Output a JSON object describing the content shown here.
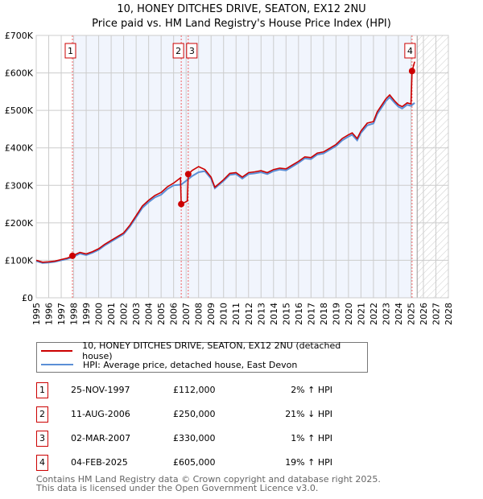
{
  "title": "10, HONEY DITCHES DRIVE, SEATON, EX12 2NU",
  "subtitle": "Price paid vs. HM Land Registry's House Price Index (HPI)",
  "chart_data": {
    "type": "line",
    "xlim": [
      1995,
      2028
    ],
    "ylim": [
      0,
      700000
    ],
    "x_ticks": [
      "1995",
      "1996",
      "1997",
      "1998",
      "1999",
      "2000",
      "2001",
      "2002",
      "2003",
      "2004",
      "2005",
      "2006",
      "2007",
      "2008",
      "2009",
      "2010",
      "2011",
      "2012",
      "2013",
      "2014",
      "2015",
      "2016",
      "2017",
      "2018",
      "2019",
      "2020",
      "2021",
      "2022",
      "2023",
      "2024",
      "2025",
      "2026",
      "2027",
      "2028"
    ],
    "y_ticks": [
      {
        "v": 0,
        "l": "£0"
      },
      {
        "v": 100000,
        "l": "£100K"
      },
      {
        "v": 200000,
        "l": "£200K"
      },
      {
        "v": 300000,
        "l": "£300K"
      },
      {
        "v": 400000,
        "l": "£400K"
      },
      {
        "v": 500000,
        "l": "£500K"
      },
      {
        "v": 600000,
        "l": "£600K"
      },
      {
        "v": 700000,
        "l": "£700K"
      }
    ],
    "shaded_range": [
      1997.9,
      2025.1
    ],
    "forecast_from": 2025.5,
    "series": [
      {
        "name": "HPI: Average price, detached house, East Devon",
        "color": "#5b8fd6",
        "x": [
          1995,
          1995.5,
          1996,
          1996.5,
          1997,
          1997.5,
          1997.9,
          1998.5,
          1999,
          1999.5,
          2000,
          2000.5,
          2001,
          2001.5,
          2002,
          2002.5,
          2003,
          2003.5,
          2004,
          2004.5,
          2005,
          2005.5,
          2006,
          2006.6,
          2007,
          2007.5,
          2008,
          2008.5,
          2009,
          2009.3,
          2010,
          2010.5,
          2011,
          2011.5,
          2012,
          2012.5,
          2013,
          2013.5,
          2014,
          2014.5,
          2015,
          2015.5,
          2016,
          2016.5,
          2017,
          2017.5,
          2018,
          2018.5,
          2019,
          2019.5,
          2020,
          2020.3,
          2020.7,
          2021,
          2021.5,
          2022,
          2022.3,
          2022.7,
          2023,
          2023.3,
          2023.7,
          2024,
          2024.3,
          2024.7,
          2025,
          2025.3
        ],
        "y": [
          98000,
          93000,
          94000,
          96000,
          100000,
          104000,
          108000,
          118000,
          114000,
          120000,
          128000,
          140000,
          150000,
          160000,
          170000,
          190000,
          215000,
          240000,
          255000,
          268000,
          275000,
          290000,
          300000,
          302000,
          312000,
          325000,
          335000,
          338000,
          318000,
          292000,
          312000,
          328000,
          330000,
          318000,
          330000,
          332000,
          335000,
          330000,
          338000,
          342000,
          340000,
          350000,
          360000,
          372000,
          370000,
          382000,
          385000,
          395000,
          405000,
          420000,
          430000,
          435000,
          420000,
          440000,
          460000,
          465000,
          490000,
          510000,
          525000,
          535000,
          520000,
          510000,
          505000,
          515000,
          512000,
          520000
        ]
      },
      {
        "name": "10, HONEY DITCHES DRIVE, SEATON, EX12 2NU (detached house)",
        "color": "#cc0000",
        "x": [
          1995,
          1995.5,
          1996,
          1996.5,
          1997,
          1997.5,
          1997.9,
          1998.5,
          1999,
          1999.5,
          2000,
          2000.5,
          2001,
          2001.5,
          2002,
          2002.5,
          2003,
          2003.5,
          2004,
          2004.5,
          2005,
          2005.5,
          2006,
          2006.55,
          2006.61,
          2007.1,
          2007.17,
          2007.5,
          2008,
          2008.5,
          2009,
          2009.3,
          2010,
          2010.5,
          2011,
          2011.5,
          2012,
          2012.5,
          2013,
          2013.5,
          2014,
          2014.5,
          2015,
          2015.5,
          2016,
          2016.5,
          2017,
          2017.5,
          2018,
          2018.5,
          2019,
          2019.5,
          2020,
          2020.3,
          2020.7,
          2021,
          2021.5,
          2022,
          2022.3,
          2022.7,
          2023,
          2023.3,
          2023.7,
          2024,
          2024.3,
          2024.7,
          2025,
          2025.09,
          2025.3
        ],
        "y": [
          100000,
          95000,
          96000,
          98000,
          102000,
          106000,
          112000,
          121000,
          117000,
          123000,
          131000,
          143000,
          153000,
          163000,
          173000,
          194000,
          219000,
          245000,
          260000,
          273000,
          281000,
          296000,
          306000,
          320000,
          250000,
          258000,
          330000,
          340000,
          350000,
          342000,
          322000,
          295000,
          315000,
          332000,
          334000,
          322000,
          334000,
          336000,
          339000,
          334000,
          342000,
          346000,
          344000,
          354000,
          364000,
          376000,
          374000,
          386000,
          389000,
          399000,
          409000,
          425000,
          435000,
          440000,
          425000,
          445000,
          466000,
          470000,
          496000,
          516000,
          531000,
          541000,
          525000,
          515000,
          510000,
          520000,
          517000,
          605000,
          630000
        ]
      }
    ],
    "sales": [
      {
        "n": "1",
        "x": 1997.9,
        "y": 112000
      },
      {
        "n": "2",
        "x": 2006.61,
        "y": 250000
      },
      {
        "n": "3",
        "x": 2007.17,
        "y": 330000
      },
      {
        "n": "4",
        "x": 2025.09,
        "y": 605000
      }
    ]
  },
  "legend": {
    "property": "10, HONEY DITCHES DRIVE, SEATON, EX12 2NU (detached house)",
    "hpi": "HPI: Average price, detached house, East Devon"
  },
  "transactions": [
    {
      "n": "1",
      "date": "25-NOV-1997",
      "price": "£112,000",
      "hpi": "2% ↑ HPI"
    },
    {
      "n": "2",
      "date": "11-AUG-2006",
      "price": "£250,000",
      "hpi": "21% ↓ HPI"
    },
    {
      "n": "3",
      "date": "02-MAR-2007",
      "price": "£330,000",
      "hpi": "1% ↑ HPI"
    },
    {
      "n": "4",
      "date": "04-FEB-2025",
      "price": "£605,000",
      "hpi": "19% ↑ HPI"
    }
  ],
  "footer": [
    "Contains HM Land Registry data © Crown copyright and database right 2025.",
    "This data is licensed under the Open Government Licence v3.0."
  ]
}
